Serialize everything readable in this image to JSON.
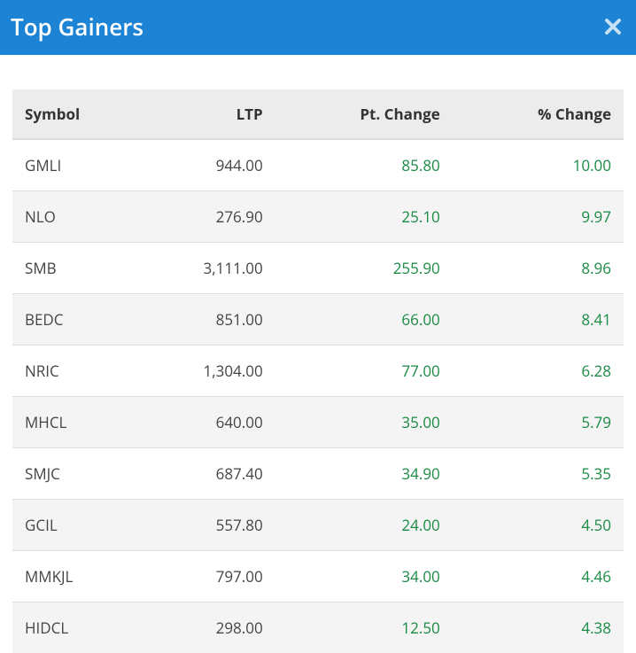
{
  "header": {
    "title": "Top Gainers"
  },
  "table": {
    "columns": {
      "symbol": {
        "label": "Symbol",
        "align": "left"
      },
      "ltp": {
        "label": "LTP",
        "align": "right"
      },
      "pt_change": {
        "label": "Pt. Change",
        "align": "right"
      },
      "pct_change": {
        "label": "% Change",
        "align": "right"
      }
    },
    "rows": [
      {
        "symbol": "GMLI",
        "ltp": "944.00",
        "pt_change": "85.80",
        "pct_change": "10.00"
      },
      {
        "symbol": "NLO",
        "ltp": "276.90",
        "pt_change": "25.10",
        "pct_change": "9.97"
      },
      {
        "symbol": "SMB",
        "ltp": "3,111.00",
        "pt_change": "255.90",
        "pct_change": "8.96"
      },
      {
        "symbol": "BEDC",
        "ltp": "851.00",
        "pt_change": "66.00",
        "pct_change": "8.41"
      },
      {
        "symbol": "NRIC",
        "ltp": "1,304.00",
        "pt_change": "77.00",
        "pct_change": "6.28"
      },
      {
        "symbol": "MHCL",
        "ltp": "640.00",
        "pt_change": "35.00",
        "pct_change": "5.79"
      },
      {
        "symbol": "SMJC",
        "ltp": "687.40",
        "pt_change": "34.90",
        "pct_change": "5.35"
      },
      {
        "symbol": "GCIL",
        "ltp": "557.80",
        "pt_change": "24.00",
        "pct_change": "4.50"
      },
      {
        "symbol": "MMKJL",
        "ltp": "797.00",
        "pt_change": "34.00",
        "pct_change": "4.46"
      },
      {
        "symbol": "HIDCL",
        "ltp": "298.00",
        "pt_change": "12.50",
        "pct_change": "4.38"
      }
    ]
  },
  "colors": {
    "header_bg": "#1c83d5",
    "header_text": "#ffffff",
    "thead_bg": "#ececec",
    "row_alt_bg": "#f4f4f4",
    "border": "#dddddd",
    "positive": "#1a8a44",
    "text": "#444444"
  },
  "typography": {
    "title_fontsize": 26,
    "table_fontsize": 17
  }
}
